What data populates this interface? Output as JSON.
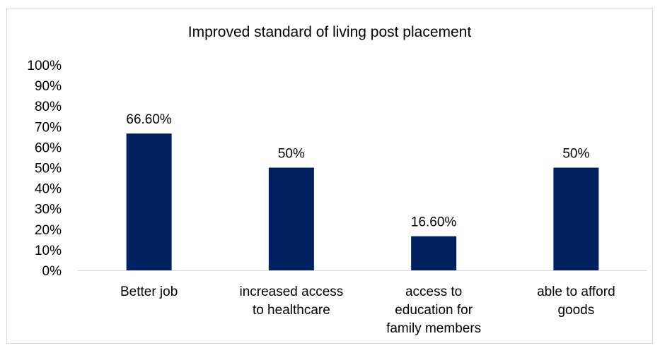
{
  "chart_data": {
    "type": "bar",
    "title": "Improved standard of living post placement",
    "xlabel": "",
    "ylabel": "",
    "categories": [
      [
        "Better job"
      ],
      [
        "increased access",
        "to healthcare"
      ],
      [
        "access to",
        "education for",
        "family members"
      ],
      [
        "able to afford",
        "goods"
      ]
    ],
    "values": [
      66.6,
      50,
      16.6,
      50
    ],
    "data_labels": [
      "66.60%",
      "50%",
      "16.60%",
      "50%"
    ],
    "ylim": [
      0,
      100
    ],
    "y_ticks": [
      0,
      10,
      20,
      30,
      40,
      50,
      60,
      70,
      80,
      90,
      100
    ],
    "y_tick_labels": [
      "0%",
      "10%",
      "20%",
      "30%",
      "40%",
      "50%",
      "60%",
      "70%",
      "80%",
      "90%",
      "100%"
    ],
    "grid": false,
    "legend": "none",
    "bar_color": "#002060",
    "axis_color": "#d9d9d9"
  }
}
